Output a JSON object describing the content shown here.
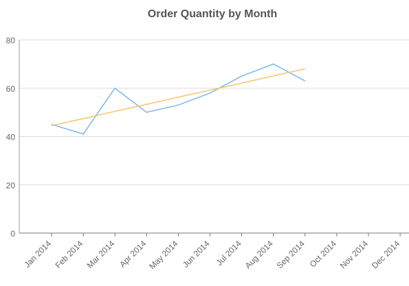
{
  "chart_data": {
    "type": "line",
    "title": "Order Quantity by Month",
    "categories": [
      "Jan 2014",
      "Feb 2014",
      "Mar 2014",
      "Apr 2014",
      "May 2014",
      "Jun 2014",
      "Jul 2014",
      "Aug 2014",
      "Sep 2014",
      "Oct 2014",
      "Nov 2014",
      "Dec 2014"
    ],
    "series": [
      {
        "color": "#7cb5ec",
        "values": [
          45,
          41,
          60,
          50,
          53,
          58,
          65,
          70,
          63,
          null,
          null,
          null
        ]
      },
      {
        "color": "#f7c46c",
        "values": [
          44.5,
          47.4,
          50.4,
          53.3,
          56.3,
          59.2,
          62.1,
          65.1,
          68,
          null,
          null,
          null
        ]
      }
    ],
    "ylim": [
      0,
      80
    ],
    "yticks": [
      0,
      20,
      40,
      60,
      80
    ],
    "grid": true
  }
}
